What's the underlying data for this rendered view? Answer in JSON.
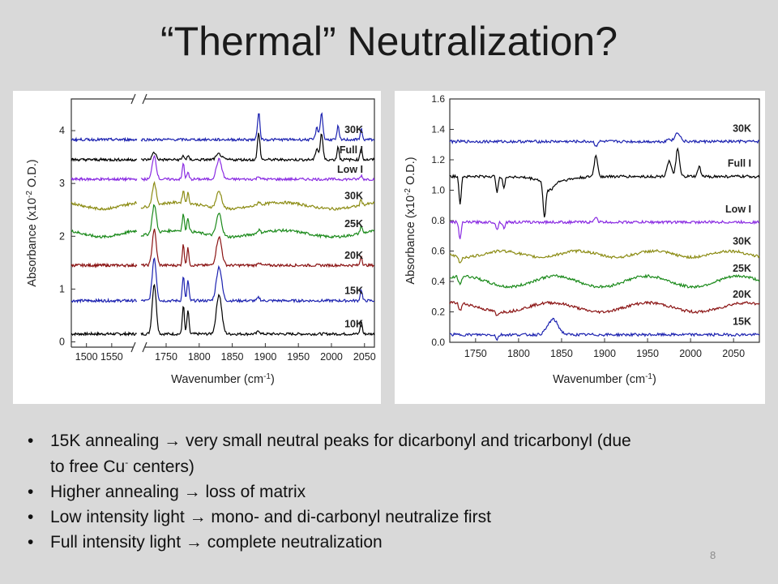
{
  "slide": {
    "title": "“Thermal” Neutralization?",
    "page_number": "8"
  },
  "bullets": [
    {
      "pre": "15K annealing ",
      "arrow": "→",
      "post": " very small neutral peaks for dicarbonyl and tricarbonyl (due to free Cu",
      "sup": "-",
      "tail": " centers)"
    },
    {
      "pre": "Higher annealing ",
      "arrow": "→",
      "post": " loss of matrix",
      "sup": "",
      "tail": ""
    },
    {
      "pre": "Low intensity light ",
      "arrow": "→",
      "post": " mono- and di-carbonyl neutralize first",
      "sup": "",
      "tail": ""
    },
    {
      "pre": "Full intensity light ",
      "arrow": "→",
      "post": " complete neutralization",
      "sup": "",
      "tail": ""
    }
  ],
  "chart_data": [
    {
      "type": "line",
      "xlabel": "Wavenumber (cm",
      "xlabel_sup": "-1",
      "xlabel_tail": ")",
      "ylabel": "Absorbance (x10",
      "ylabel_sup": "-2",
      "ylabel_tail": " O.D.)",
      "x_ticks": [
        1500,
        1550,
        1750,
        1800,
        1850,
        1900,
        1950,
        2000,
        2050
      ],
      "y_ticks": [
        0,
        1,
        2,
        3,
        4
      ],
      "ylim": [
        -0.1,
        4.6
      ],
      "axis_break": true,
      "segments": [
        [
          1470,
          1600
        ],
        [
          1712,
          2065
        ]
      ],
      "peaks": [
        1732,
        1776,
        1783,
        1830,
        1890,
        1978,
        1985,
        2010,
        2045
      ],
      "series": [
        {
          "name": "10K",
          "color": "#000000",
          "baseline": 0.15
        },
        {
          "name": "15K",
          "color": "#1c22b0",
          "baseline": 0.78
        },
        {
          "name": "20K",
          "color": "#8b1414",
          "baseline": 1.45
        },
        {
          "name": "25K",
          "color": "#1b8a1b",
          "baseline": 2.05
        },
        {
          "name": "30K",
          "color": "#8c8c14",
          "baseline": 2.58
        },
        {
          "name": "Low I",
          "color": "#8a2be2",
          "baseline": 3.08
        },
        {
          "name": "Full I",
          "color": "#000000",
          "baseline": 3.45
        },
        {
          "name": "30K",
          "color": "#1c22b0",
          "baseline": 3.83
        }
      ]
    },
    {
      "type": "line",
      "xlabel": "Wavenumber (cm",
      "xlabel_sup": "-1",
      "xlabel_tail": ")",
      "ylabel": "Absorbance (x10",
      "ylabel_sup": "-2",
      "ylabel_tail": " O.D.)",
      "x_ticks": [
        1750,
        1800,
        1850,
        1900,
        1950,
        2000,
        2050
      ],
      "y_ticks": [
        "0.0",
        "0.2",
        "0.4",
        "0.6",
        "0.8",
        "1.0",
        "1.2",
        "1.4",
        "1.6"
      ],
      "xlim": [
        1720,
        2080
      ],
      "ylim": [
        0.0,
        1.6
      ],
      "series": [
        {
          "name": "15K",
          "color": "#1c22b0",
          "baseline": 0.05
        },
        {
          "name": "20K",
          "color": "#8b1414",
          "baseline": 0.23
        },
        {
          "name": "25K",
          "color": "#1b8a1b",
          "baseline": 0.4
        },
        {
          "name": "30K",
          "color": "#8c8c14",
          "baseline": 0.58
        },
        {
          "name": "Low I",
          "color": "#8a2be2",
          "baseline": 0.79
        },
        {
          "name": "Full I",
          "color": "#000000",
          "baseline": 1.09
        },
        {
          "name": "30K",
          "color": "#1c22b0",
          "baseline": 1.32
        }
      ]
    }
  ]
}
